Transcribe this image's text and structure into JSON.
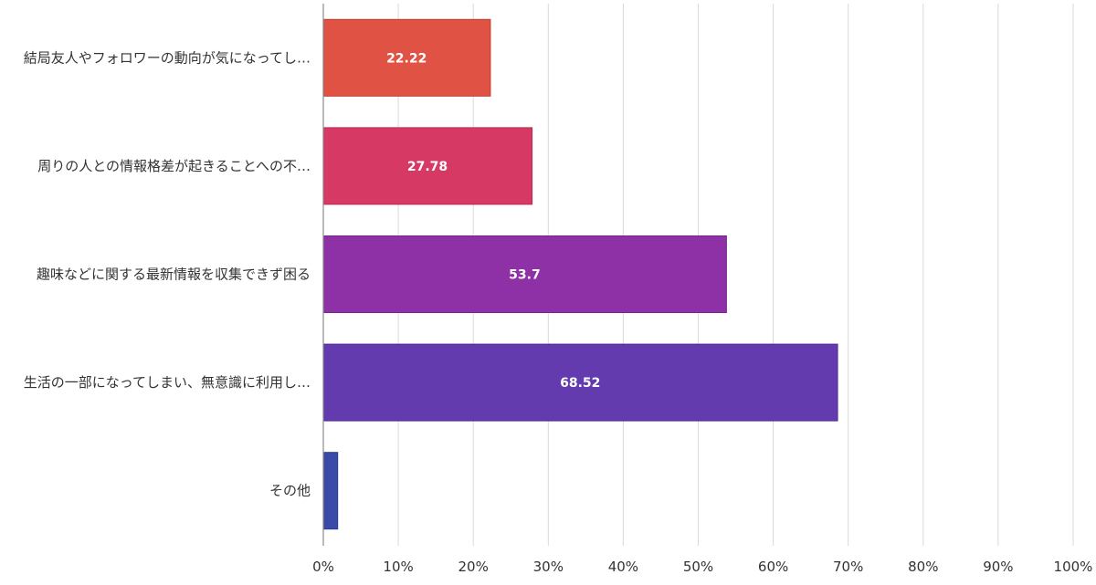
{
  "chart_data": {
    "type": "bar",
    "orientation": "horizontal",
    "title": "",
    "xlabel": "",
    "ylabel": "",
    "xlim": [
      0,
      100
    ],
    "grid": true,
    "tick_labels": [
      "0%",
      "10%",
      "20%",
      "30%",
      "40%",
      "50%",
      "60%",
      "70%",
      "80%",
      "90%",
      "100%"
    ],
    "categories": [
      "結局友人やフォロワーの動向が気になってし…",
      "周りの人との情報格差が起きることへの不…",
      "趣味などに関する最新情報を収集できず困る",
      "生活の一部になってしまい、無意識に利用し…",
      "その他"
    ],
    "values": [
      22.22,
      27.78,
      53.7,
      68.52,
      1.85
    ],
    "data_labels": [
      "22.22",
      "27.78",
      "53.7",
      "68.52",
      ""
    ],
    "colors": [
      "#E05243",
      "#D63964",
      "#8E31A6",
      "#633BAE",
      "#3A4BA7"
    ],
    "border_colors": [
      "#C23C30",
      "#B82A52",
      "#76238C",
      "#4F2B96",
      "#2D3A8A"
    ]
  }
}
